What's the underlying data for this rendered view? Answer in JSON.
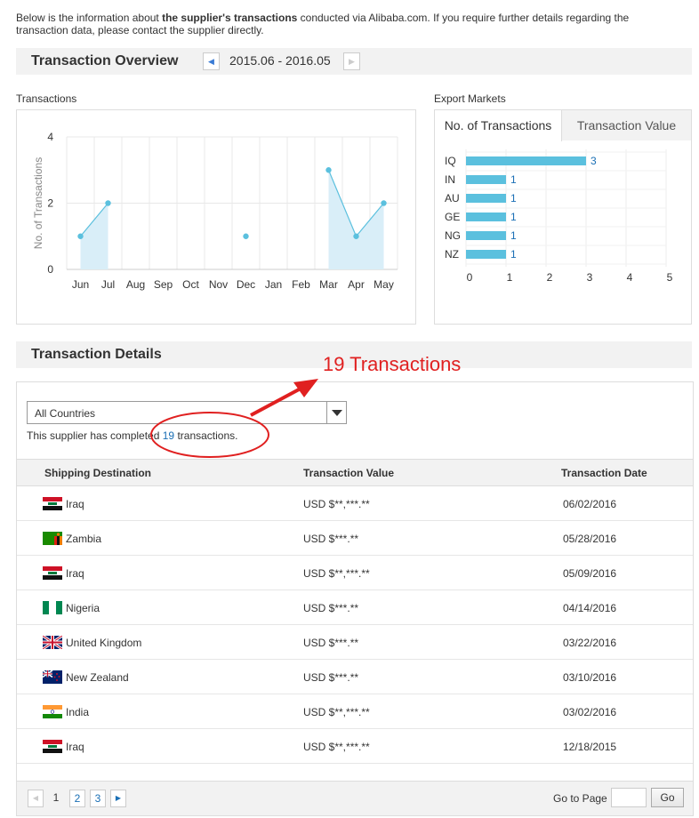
{
  "intro": {
    "prefix": "Below is the information about ",
    "bold": "the supplier's transactions",
    "suffix": " conducted via Alibaba.com. If you require further details regarding the transaction data, please contact the supplier directly."
  },
  "overview": {
    "title": "Transaction Overview",
    "period": "2015.06 - 2016.05",
    "prev_icon": "chevron-left-icon",
    "next_icon": "chevron-right-icon"
  },
  "transactions_panel": {
    "label": "Transactions"
  },
  "export_panel": {
    "label": "Export Markets",
    "tabs": [
      {
        "label": "No. of Transactions",
        "active": true
      },
      {
        "label": "Transaction Value",
        "active": false
      }
    ]
  },
  "chart_data": [
    {
      "type": "line",
      "ylabel": "No. of Transactions",
      "xlabel": "",
      "categories": [
        "Jun",
        "Jul",
        "Aug",
        "Sep",
        "Oct",
        "Nov",
        "Dec",
        "Jan",
        "Feb",
        "Mar",
        "Apr",
        "May"
      ],
      "values": [
        1,
        2,
        null,
        null,
        null,
        null,
        1,
        null,
        null,
        3,
        1,
        2
      ],
      "ylim": [
        0,
        4
      ],
      "yticks": [
        0,
        2,
        4
      ],
      "color": "#5bc0de",
      "fill": "#d9eef8"
    },
    {
      "type": "bar",
      "orientation": "horizontal",
      "categories": [
        "IQ",
        "IN",
        "AU",
        "GE",
        "NG",
        "NZ"
      ],
      "values": [
        3,
        1,
        1,
        1,
        1,
        1
      ],
      "xlim": [
        0,
        5
      ],
      "xticks": [
        0,
        1,
        2,
        3,
        4,
        5
      ],
      "color": "#5bc0de"
    }
  ],
  "details": {
    "title": "Transaction Details",
    "filter_value": "All Countries",
    "completed_prefix": "This supplier has completed ",
    "completed_count": "19",
    "completed_suffix": " transactions.",
    "columns": [
      "Shipping Destination",
      "Transaction Value",
      "Transaction Date"
    ],
    "rows": [
      {
        "country": "Iraq",
        "flag": "iraq-flag-icon",
        "value": "USD $**,***.**",
        "date": "06/02/2016"
      },
      {
        "country": "Zambia",
        "flag": "zambia-flag-icon",
        "value": "USD $***.**",
        "date": "05/28/2016"
      },
      {
        "country": "Iraq",
        "flag": "iraq-flag-icon",
        "value": "USD $**,***.**",
        "date": "05/09/2016"
      },
      {
        "country": "Nigeria",
        "flag": "nigeria-flag-icon",
        "value": "USD $***.**",
        "date": "04/14/2016"
      },
      {
        "country": "United Kingdom",
        "flag": "uk-flag-icon",
        "value": "USD $***.**",
        "date": "03/22/2016"
      },
      {
        "country": "New Zealand",
        "flag": "new-zealand-flag-icon",
        "value": "USD $***.**",
        "date": "03/10/2016"
      },
      {
        "country": "India",
        "flag": "india-flag-icon",
        "value": "USD $**,***.**",
        "date": "03/02/2016"
      },
      {
        "country": "Iraq",
        "flag": "iraq-flag-icon",
        "value": "USD $**,***.**",
        "date": "12/18/2015"
      }
    ]
  },
  "pagination": {
    "pages": [
      "1",
      "2",
      "3"
    ],
    "current": "1",
    "goto_label": "Go to Page",
    "go_label": "Go"
  },
  "annotation": {
    "text": "19 Transactions",
    "color": "#e02020"
  }
}
